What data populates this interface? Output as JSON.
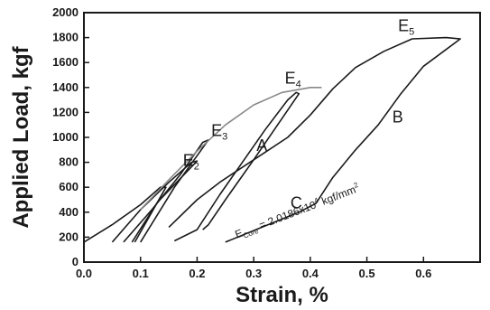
{
  "chart_data": {
    "type": "line",
    "title": "",
    "xlabel": "Strain, %",
    "ylabel": "Applied Load, kgf",
    "xlim": [
      0.0,
      0.7
    ],
    "ylim": [
      0,
      2000
    ],
    "xticks": [
      "0.0",
      "0.1",
      "0.2",
      "0.3",
      "0.4",
      "0.5",
      "0.6"
    ],
    "xtick_values": [
      0.0,
      0.1,
      0.2,
      0.3,
      0.4,
      0.5,
      0.6
    ],
    "yticks": [
      "0",
      "200",
      "400",
      "600",
      "800",
      "1000",
      "1200",
      "1400",
      "1600",
      "1800",
      "2000"
    ],
    "ytick_values": [
      0,
      200,
      400,
      600,
      800,
      1000,
      1200,
      1400,
      1600,
      1800,
      2000
    ],
    "grid": false,
    "colors": {
      "main": "#1a1a1a",
      "upper": "#888888"
    },
    "series": [
      {
        "color": "#1a1a1a",
        "points": [
          [
            0.0,
            160
          ],
          [
            0.05,
            300
          ],
          [
            0.1,
            460
          ],
          [
            0.135,
            600
          ],
          [
            0.145,
            600
          ],
          [
            0.09,
            160
          ]
        ]
      },
      {
        "color": "#1a1a1a",
        "points": [
          [
            0.05,
            160
          ],
          [
            0.1,
            420
          ],
          [
            0.15,
            640
          ],
          [
            0.19,
            800
          ],
          [
            0.2,
            810
          ],
          [
            0.13,
            480
          ],
          [
            0.085,
            160
          ]
        ]
      },
      {
        "color": "#1a1a1a",
        "points": [
          [
            0.07,
            160
          ],
          [
            0.12,
            420
          ],
          [
            0.17,
            700
          ],
          [
            0.21,
            960
          ],
          [
            0.22,
            980
          ],
          [
            0.16,
            600
          ],
          [
            0.1,
            160
          ]
        ]
      },
      {
        "color": "#1a1a1a",
        "points": [
          [
            0.16,
            170
          ],
          [
            0.2,
            260
          ],
          [
            0.24,
            540
          ],
          [
            0.28,
            800
          ],
          [
            0.32,
            1060
          ],
          [
            0.36,
            1300
          ],
          [
            0.375,
            1360
          ],
          [
            0.38,
            1350
          ],
          [
            0.3,
            820
          ],
          [
            0.25,
            500
          ],
          [
            0.22,
            300
          ],
          [
            0.21,
            260
          ]
        ]
      },
      {
        "color": "#888888",
        "points": [
          [
            0.1,
            420
          ],
          [
            0.15,
            660
          ],
          [
            0.2,
            890
          ],
          [
            0.25,
            1100
          ],
          [
            0.3,
            1260
          ],
          [
            0.35,
            1360
          ],
          [
            0.4,
            1400
          ],
          [
            0.42,
            1400
          ]
        ]
      },
      {
        "color": "#1a1a1a",
        "points": [
          [
            0.25,
            160
          ],
          [
            0.32,
            290
          ],
          [
            0.38,
            400
          ],
          [
            0.41,
            470
          ],
          [
            0.44,
            680
          ],
          [
            0.48,
            900
          ],
          [
            0.52,
            1100
          ],
          [
            0.56,
            1350
          ],
          [
            0.6,
            1570
          ],
          [
            0.665,
            1790
          ],
          [
            0.64,
            1800
          ],
          [
            0.58,
            1790
          ],
          [
            0.53,
            1690
          ],
          [
            0.48,
            1560
          ],
          [
            0.44,
            1390
          ],
          [
            0.4,
            1180
          ],
          [
            0.36,
            1000
          ],
          [
            0.32,
            880
          ],
          [
            0.28,
            760
          ],
          [
            0.24,
            640
          ],
          [
            0.2,
            500
          ],
          [
            0.15,
            280
          ]
        ]
      }
    ],
    "annotations": {
      "e2": {
        "label": "E",
        "sub": "2",
        "x": 0.175,
        "y": 770
      },
      "e3": {
        "label": "E",
        "sub": "3",
        "x": 0.225,
        "y": 1010
      },
      "e4": {
        "label": "E",
        "sub": "4",
        "x": 0.355,
        "y": 1430
      },
      "e5": {
        "label": "E",
        "sub": "5",
        "x": 0.555,
        "y": 1850
      },
      "a": {
        "label": "A",
        "x": 0.305,
        "y": 890
      },
      "b": {
        "label": "B",
        "x": 0.545,
        "y": 1120
      },
      "c": {
        "label": "C",
        "x": 0.365,
        "y": 430
      },
      "ecore": {
        "label": "E",
        "sub": "Core",
        "value": " = 2.0186x10",
        "exp": "4",
        "unit": " kgf/mm",
        "unit_exp": "2",
        "x": 0.27,
        "y": 190,
        "angle": -21
      }
    }
  }
}
